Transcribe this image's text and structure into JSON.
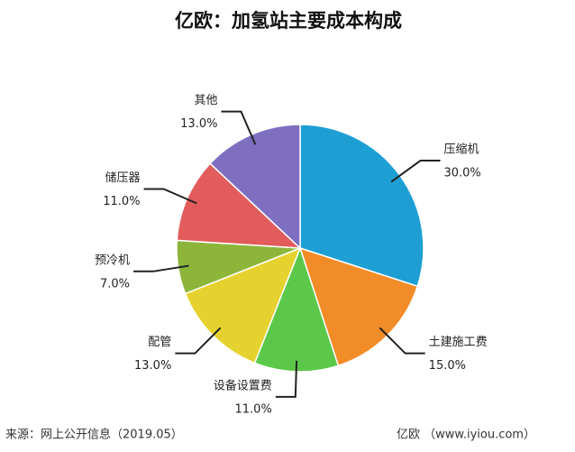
{
  "chart_data": {
    "type": "pie",
    "title": "亿欧：加氢站主要成本构成",
    "categories": [
      "压缩机",
      "土建施工费",
      "设备设置费",
      "配管",
      "预冷机",
      "储压器",
      "其他"
    ],
    "values": [
      30,
      15,
      11,
      13,
      7,
      11,
      13
    ],
    "value_labels": [
      "30.0%",
      "15.0%",
      "11.0%",
      "13.0%",
      "7.0%",
      "11.0%",
      "13.0%"
    ],
    "colors": [
      "#1e9fd4",
      "#f28c28",
      "#5cc84a",
      "#e6d22e",
      "#8db53a",
      "#e25c5c",
      "#7e6fc0"
    ],
    "source": "来源：网上公开信息（2019.05）",
    "credit": "亿欧 （www.iyiou.com）"
  }
}
